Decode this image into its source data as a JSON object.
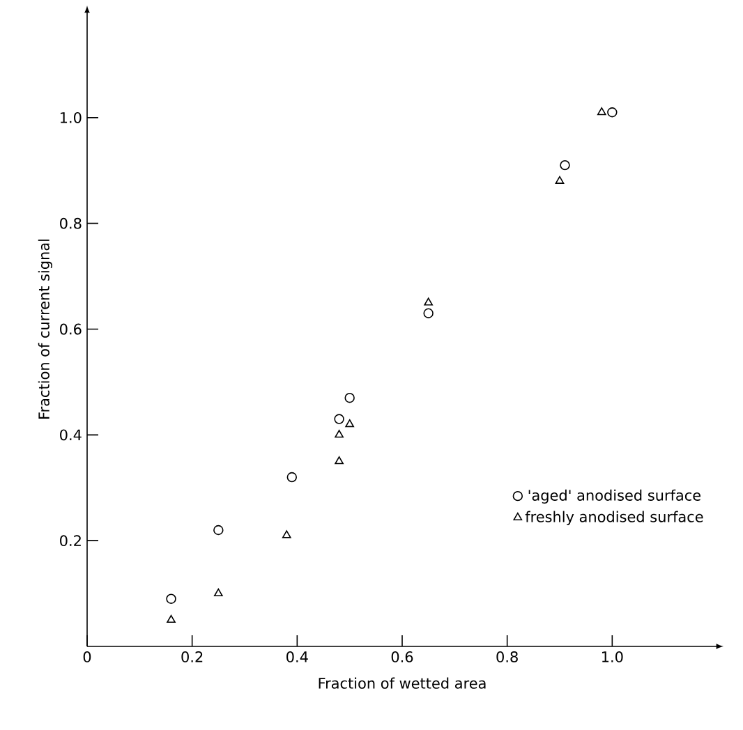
{
  "chart_data": {
    "type": "scatter",
    "xlabel": "Fraction of wetted area",
    "ylabel": "Fraction of current signal",
    "xlim": [
      0,
      1.2
    ],
    "ylim": [
      0,
      1.2
    ],
    "xticks": [
      {
        "value": 0,
        "label": "0"
      },
      {
        "value": 0.2,
        "label": "0.2"
      },
      {
        "value": 0.4,
        "label": "0.4"
      },
      {
        "value": 0.6,
        "label": "0.6"
      },
      {
        "value": 0.8,
        "label": "0.8"
      },
      {
        "value": 1.0,
        "label": "1.0"
      }
    ],
    "yticks": [
      {
        "value": 0.2,
        "label": "0.2"
      },
      {
        "value": 0.4,
        "label": "0.4"
      },
      {
        "value": 0.6,
        "label": "0.6"
      },
      {
        "value": 0.8,
        "label": "0.8"
      },
      {
        "value": 1.0,
        "label": "1.0"
      }
    ],
    "grid": false,
    "legend": "right",
    "series": [
      {
        "name": "'aged' anodised surface",
        "color": "#000000",
        "marker": "circle",
        "x": [
          0.16,
          0.25,
          0.39,
          0.48,
          0.5,
          0.65,
          0.91,
          1.0
        ],
        "values": [
          0.09,
          0.22,
          0.32,
          0.43,
          0.47,
          0.63,
          0.91,
          1.01
        ]
      },
      {
        "name": "freshly anodised surface",
        "color": "#000000",
        "marker": "triangle",
        "x": [
          0.16,
          0.25,
          0.38,
          0.48,
          0.48,
          0.5,
          0.65,
          0.9,
          0.98
        ],
        "values": [
          0.05,
          0.1,
          0.21,
          0.35,
          0.4,
          0.42,
          0.65,
          0.88,
          1.01
        ]
      }
    ]
  }
}
